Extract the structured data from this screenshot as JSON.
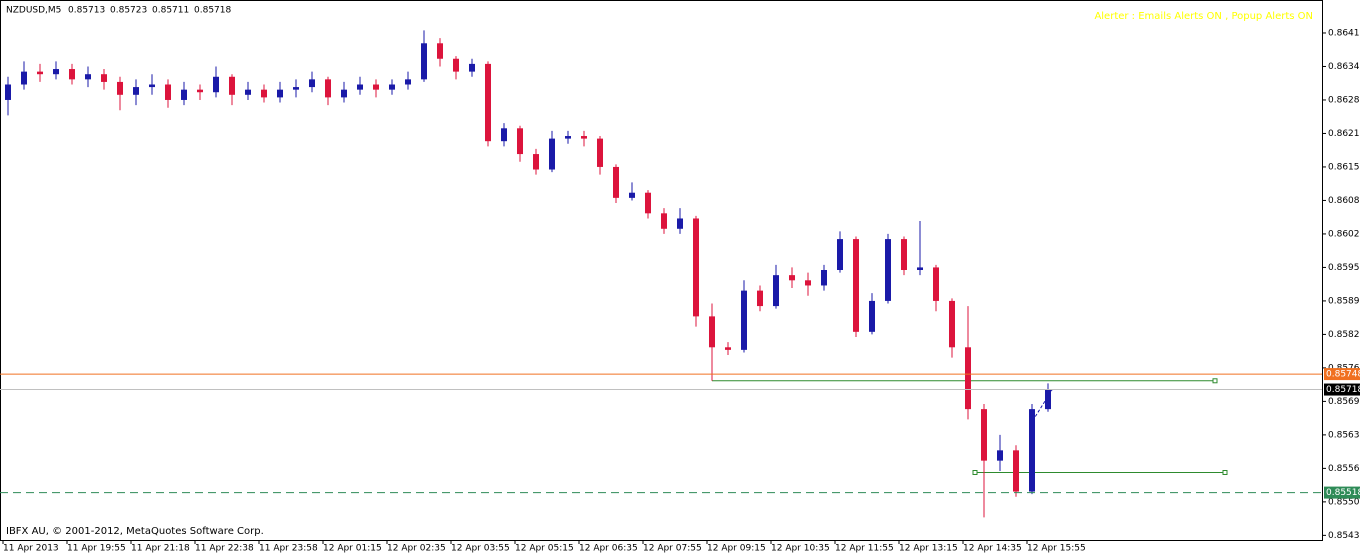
{
  "header": {
    "symbol": "NZDUSD,M5",
    "ohlc": [
      "0.85713",
      "0.85723",
      "0.85711",
      "0.85718"
    ],
    "alert": "Alerter : Emails Alerts ON , Popup Alerts ON",
    "copyright": "IBFX AU, © 2001-2012, MetaQuotes Software Corp."
  },
  "chart_data": {
    "type": "candlestick",
    "bull_color": "#1a1aa8",
    "bear_color": "#dc143c",
    "ylim": [
      0.85426,
      0.86474
    ],
    "yticks": [
      {
        "value": 0.8641,
        "label": "0.86410"
      },
      0.86345,
      {
        "value": 0.8628,
        "label": "0.86280"
      },
      0.86215,
      {
        "value": 0.8615,
        "label": "0.86150"
      },
      0.86085,
      {
        "value": 0.8602,
        "label": "0.86020"
      },
      0.85955,
      {
        "value": 0.8589,
        "label": "0.85890"
      },
      0.85825,
      {
        "value": 0.8576,
        "label": "0.85760"
      },
      0.85695,
      {
        "value": 0.8563,
        "label": "0.85630"
      },
      0.85565,
      {
        "value": 0.855,
        "label": "0.85500"
      },
      0.85435
    ],
    "categories": [
      "11 Apr 2013",
      null,
      null,
      null,
      "11 Apr 19:55",
      null,
      null,
      null,
      "11 Apr 21:18",
      null,
      null,
      null,
      "11 Apr 22:38",
      null,
      null,
      null,
      "11 Apr 23:58",
      null,
      null,
      null,
      "12 Apr 01:15",
      null,
      null,
      null,
      "12 Apr 02:35",
      null,
      null,
      null,
      "12 Apr 03:55",
      null,
      null,
      null,
      "12 Apr 05:15",
      null,
      null,
      null,
      "12 Apr 06:35",
      null,
      null,
      null,
      "12 Apr 07:55",
      null,
      null,
      null,
      "12 Apr 09:15",
      null,
      null,
      null,
      "12 Apr 10:35",
      null,
      null,
      null,
      "12 Apr 11:55",
      null,
      null,
      null,
      "12 Apr 13:15",
      null,
      null,
      null,
      "12 Apr 14:35",
      null,
      null,
      null,
      "12 Apr 15:55",
      null
    ],
    "candles": [
      [
        0.8628,
        0.86325,
        0.8625,
        0.8631
      ],
      [
        0.8631,
        0.86355,
        0.863,
        0.86335
      ],
      [
        0.86335,
        0.8635,
        0.86315,
        0.8633
      ],
      [
        0.8633,
        0.86355,
        0.8632,
        0.8634
      ],
      [
        0.8634,
        0.8635,
        0.8631,
        0.8632
      ],
      [
        0.8632,
        0.86345,
        0.86305,
        0.8633
      ],
      [
        0.8633,
        0.8634,
        0.863,
        0.86315
      ],
      [
        0.86315,
        0.86325,
        0.8626,
        0.8629
      ],
      [
        0.8629,
        0.8632,
        0.8627,
        0.86305
      ],
      [
        0.86305,
        0.8633,
        0.8629,
        0.8631
      ],
      [
        0.8631,
        0.8632,
        0.86265,
        0.8628
      ],
      [
        0.8628,
        0.86315,
        0.8627,
        0.863
      ],
      [
        0.863,
        0.8631,
        0.8628,
        0.86295
      ],
      [
        0.86295,
        0.86345,
        0.86285,
        0.86325
      ],
      [
        0.86325,
        0.8633,
        0.8627,
        0.8629
      ],
      [
        0.8629,
        0.86315,
        0.8628,
        0.863
      ],
      [
        0.863,
        0.8631,
        0.86275,
        0.86285
      ],
      [
        0.86285,
        0.86315,
        0.86275,
        0.863
      ],
      [
        0.863,
        0.8632,
        0.86285,
        0.86305
      ],
      [
        0.86305,
        0.86335,
        0.86295,
        0.8632
      ],
      [
        0.8632,
        0.86325,
        0.8627,
        0.86285
      ],
      [
        0.86285,
        0.86315,
        0.86275,
        0.863
      ],
      [
        0.863,
        0.86325,
        0.8629,
        0.8631
      ],
      [
        0.8631,
        0.8632,
        0.86285,
        0.863
      ],
      [
        0.863,
        0.8632,
        0.8629,
        0.8631
      ],
      [
        0.8631,
        0.86335,
        0.863,
        0.8632
      ],
      [
        0.8632,
        0.86415,
        0.86315,
        0.8639
      ],
      [
        0.8639,
        0.864,
        0.86345,
        0.8636
      ],
      [
        0.8636,
        0.86365,
        0.8632,
        0.86335
      ],
      [
        0.86335,
        0.8636,
        0.86325,
        0.8635
      ],
      [
        0.8635,
        0.86355,
        0.8619,
        0.862
      ],
      [
        0.862,
        0.86235,
        0.8619,
        0.86225
      ],
      [
        0.86225,
        0.8623,
        0.8616,
        0.86175
      ],
      [
        0.86175,
        0.86185,
        0.86135,
        0.86145
      ],
      [
        0.86145,
        0.8622,
        0.8614,
        0.86205
      ],
      [
        0.86205,
        0.8622,
        0.86195,
        0.8621
      ],
      [
        0.8621,
        0.8622,
        0.8619,
        0.86205
      ],
      [
        0.86205,
        0.8621,
        0.86135,
        0.8615
      ],
      [
        0.8615,
        0.86155,
        0.8608,
        0.8609
      ],
      [
        0.8609,
        0.8612,
        0.86085,
        0.861
      ],
      [
        0.861,
        0.86105,
        0.8605,
        0.8606
      ],
      [
        0.8606,
        0.8607,
        0.8602,
        0.8603
      ],
      [
        0.8603,
        0.8607,
        0.8602,
        0.8605
      ],
      [
        0.8605,
        0.86055,
        0.8584,
        0.8586
      ],
      [
        0.8586,
        0.85885,
        0.85735,
        0.858
      ],
      [
        0.858,
        0.8581,
        0.85785,
        0.85795
      ],
      [
        0.85795,
        0.8593,
        0.8579,
        0.8591
      ],
      [
        0.8591,
        0.8592,
        0.8587,
        0.8588
      ],
      [
        0.8588,
        0.8596,
        0.85875,
        0.8594
      ],
      [
        0.8594,
        0.85955,
        0.85915,
        0.8593
      ],
      [
        0.8593,
        0.85945,
        0.859,
        0.8592
      ],
      [
        0.8592,
        0.8596,
        0.8591,
        0.8595
      ],
      [
        0.8595,
        0.86025,
        0.85945,
        0.8601
      ],
      [
        0.8601,
        0.86015,
        0.8582,
        0.8583
      ],
      [
        0.8583,
        0.85905,
        0.85825,
        0.8589
      ],
      [
        0.8589,
        0.8602,
        0.85885,
        0.8601
      ],
      [
        0.8601,
        0.86015,
        0.8594,
        0.8595
      ],
      [
        0.8595,
        0.86045,
        0.8594,
        0.85955
      ],
      [
        0.85955,
        0.8596,
        0.8587,
        0.8589
      ],
      [
        0.8589,
        0.85895,
        0.8578,
        0.858
      ],
      [
        0.858,
        0.8588,
        0.8566,
        0.8568
      ],
      [
        0.8568,
        0.8569,
        0.8547,
        0.8558
      ],
      [
        0.8558,
        0.8563,
        0.8556,
        0.856
      ],
      [
        0.856,
        0.8561,
        0.8551,
        0.8552
      ],
      [
        0.8552,
        0.8569,
        0.85515,
        0.8568
      ],
      [
        0.8568,
        0.8573,
        0.85675,
        0.85718
      ]
    ],
    "levels": [
      {
        "value": 0.85748,
        "color": "#f07020",
        "dash": false
      },
      {
        "value": 0.85718,
        "color": "#c0c0c0",
        "dash": false
      },
      {
        "value": 0.85518,
        "color": "#2e8b57",
        "dash": true
      }
    ],
    "trend_lines": [
      {
        "value": 0.85735,
        "color": "#2e8b2e"
      },
      {
        "value": 0.85557,
        "color": "#2e8b2e"
      }
    ]
  }
}
